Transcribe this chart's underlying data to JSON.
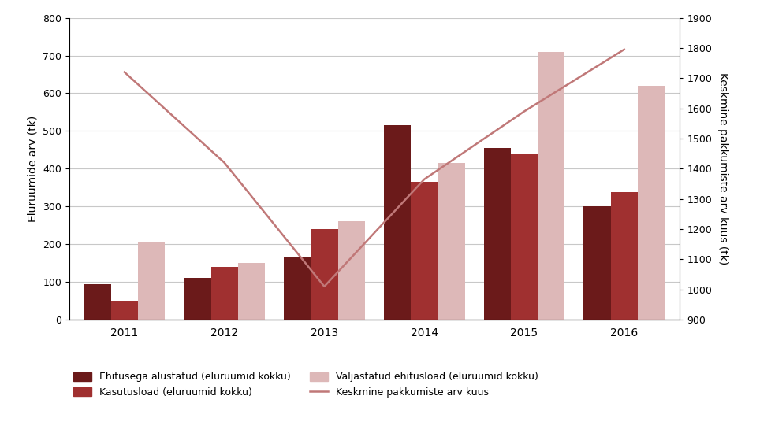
{
  "years": [
    2011,
    2012,
    2013,
    2014,
    2015,
    2016
  ],
  "ehitusega_alustatud": [
    95,
    110,
    165,
    515,
    455,
    300
  ],
  "kasutusload": [
    50,
    140,
    240,
    365,
    440,
    338
  ],
  "valjastatud_ehitusload": [
    205,
    150,
    260,
    415,
    710,
    620
  ],
  "keskmine_pakkumiste": [
    1720,
    1420,
    1010,
    1365,
    1590,
    1795
  ],
  "color_ehitusega": "#6b1a1a",
  "color_kasutusload": "#a03030",
  "color_valjastatud": "#ddb8b8",
  "color_line": "#c07878",
  "ylabel_left": "Eluruumide arv (tk)",
  "ylabel_right": "Keskmine pakkumiste arv kuus (tk)",
  "ylim_left": [
    0,
    800
  ],
  "ylim_right": [
    900,
    1900
  ],
  "yticks_left": [
    0,
    100,
    200,
    300,
    400,
    500,
    600,
    700,
    800
  ],
  "yticks_right": [
    900,
    1000,
    1100,
    1200,
    1300,
    1400,
    1500,
    1600,
    1700,
    1800,
    1900
  ],
  "legend_ehitusega": "Ehitusega alustatud (eluruumid kokku)",
  "legend_kasutusload": "Kasutusload (eluruumid kokku)",
  "legend_valjastatud": "Väljastatud ehitusload (eluruumid kokku)",
  "legend_line": "Keskmine pakkumiste arv kuus",
  "bar_width": 0.27,
  "background_color": "#ffffff",
  "grid_color": "#c8c8c8"
}
